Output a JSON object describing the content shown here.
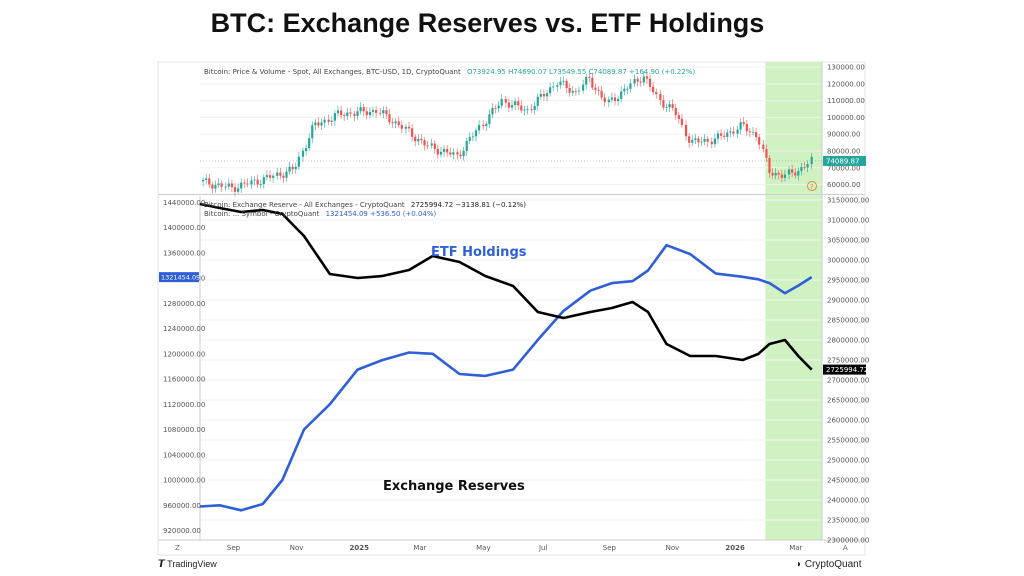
{
  "page": {
    "title": "BTC: Exchange Reserves vs. ETF Holdings",
    "footer_left": "TradingView",
    "footer_right": "CryptoQuant"
  },
  "price_panel": {
    "legend": "Bitcoin: Price & Volume - Spot, All Exchanges, BTC-USD, 1D, CryptoQuant",
    "ohlc": "O73924.95 H74690.07 L73549.55 C74089.87 +164.90 (+0.22%)",
    "last_price_tag": "74089.87"
  },
  "lower_panel": {
    "legend_reserve": "Bitcoin: Exchange Reserve - All Exchanges - CryptoQuant",
    "legend_reserve_values": "2725994.72 −3138.81 (−0.12%)",
    "legend_etf": "Bitcoin: ... Symbol - CryptoQuant",
    "legend_etf_values": "1321454.09 +536.50 (+0.04%)",
    "etf_tag": "1321454.09",
    "reserve_tag": "2725994.72",
    "annotation_etf": "ETF Holdings",
    "annotation_reserve": "Exchange Reserves"
  },
  "x_axis_labels": [
    "Sep",
    "Nov",
    "2025",
    "Mar",
    "May",
    "Jul",
    "Sep",
    "Nov",
    "2026",
    "Mar"
  ],
  "corner_left": "Z",
  "corner_right": "A",
  "colors": {
    "price_up": "#26a69a",
    "price_down": "#ef5350",
    "etf_line": "#2f5fd6",
    "reserve_line": "#000000",
    "highlight": "#c8f0b8"
  },
  "chart_data": [
    {
      "type": "line",
      "title": "Bitcoin: Price & Volume - Spot, All Exchanges, BTC-USD, 1D, CryptoQuant",
      "yaxis_ticks": [
        60000,
        70000,
        80000,
        90000,
        100000,
        110000,
        120000,
        130000
      ],
      "ylim": [
        55000,
        133000
      ],
      "x": [
        "2024-08-01",
        "2024-09-01",
        "2024-10-01",
        "2024-11-01",
        "2024-11-20",
        "2024-12-15",
        "2025-01-20",
        "2025-02-10",
        "2025-03-10",
        "2025-04-08",
        "2025-05-01",
        "2025-05-22",
        "2025-06-15",
        "2025-07-14",
        "2025-08-01",
        "2025-08-14",
        "2025-09-01",
        "2025-09-15",
        "2025-10-06",
        "2025-10-20",
        "2025-11-05",
        "2025-11-21",
        "2025-12-15",
        "2026-01-10",
        "2026-01-25",
        "2026-02-05",
        "2026-02-20",
        "2026-03-10",
        "2026-03-18"
      ],
      "series": [
        {
          "values": [
            62000,
            58000,
            63000,
            69000,
            95000,
            102000,
            104000,
            96000,
            83000,
            77000,
            95000,
            110000,
            104000,
            121000,
            115000,
            123000,
            108000,
            115000,
            125000,
            111000,
            104000,
            85000,
            87000,
            95000,
            89000,
            68000,
            65000,
            70000,
            74090
          ]
        }
      ]
    },
    {
      "type": "line",
      "title": "",
      "x": [
        "2024-08-01",
        "2024-08-20",
        "2024-09-10",
        "2024-10-01",
        "2024-10-20",
        "2024-11-10",
        "2024-12-05",
        "2025-01-01",
        "2025-01-25",
        "2025-02-20",
        "2025-03-15",
        "2025-04-10",
        "2025-05-05",
        "2025-06-01",
        "2025-06-25",
        "2025-07-20",
        "2025-08-15",
        "2025-09-05",
        "2025-09-25",
        "2025-10-10",
        "2025-10-28",
        "2025-11-20",
        "2025-12-15",
        "2026-01-10",
        "2026-01-25",
        "2026-02-05",
        "2026-02-20",
        "2026-03-05",
        "2026-03-18"
      ],
      "series": [
        {
          "name": "Exchange Reserves",
          "axis": "right",
          "yaxis_ticks": [
            2300000,
            2350000,
            2400000,
            2450000,
            2500000,
            2550000,
            2600000,
            2650000,
            2700000,
            2750000,
            2800000,
            2850000,
            2900000,
            2950000,
            3000000,
            3050000,
            3100000,
            3150000
          ],
          "ylim": [
            2300000,
            3160000
          ],
          "values": [
            3140000,
            3130000,
            3120000,
            3125000,
            3115000,
            3060000,
            2965000,
            2955000,
            2960000,
            2975000,
            3010000,
            2995000,
            2960000,
            2935000,
            2870000,
            2855000,
            2870000,
            2880000,
            2895000,
            2870000,
            2790000,
            2760000,
            2760000,
            2750000,
            2765000,
            2790000,
            2800000,
            2760000,
            2725995
          ]
        },
        {
          "name": "ETF Holdings",
          "axis": "left",
          "yaxis_ticks": [
            920000,
            960000,
            1000000,
            1040000,
            1080000,
            1120000,
            1160000,
            1200000,
            1240000,
            1280000,
            1320000,
            1360000,
            1400000,
            1440000
          ],
          "ylim": [
            905000,
            1450000
          ],
          "values": [
            958000,
            960000,
            952000,
            962000,
            1000000,
            1080000,
            1120000,
            1175000,
            1190000,
            1202000,
            1200000,
            1168000,
            1165000,
            1175000,
            1222000,
            1268000,
            1300000,
            1312000,
            1315000,
            1332000,
            1372000,
            1358000,
            1327000,
            1322000,
            1318000,
            1312000,
            1296000,
            1308000,
            1321454
          ]
        }
      ]
    }
  ]
}
